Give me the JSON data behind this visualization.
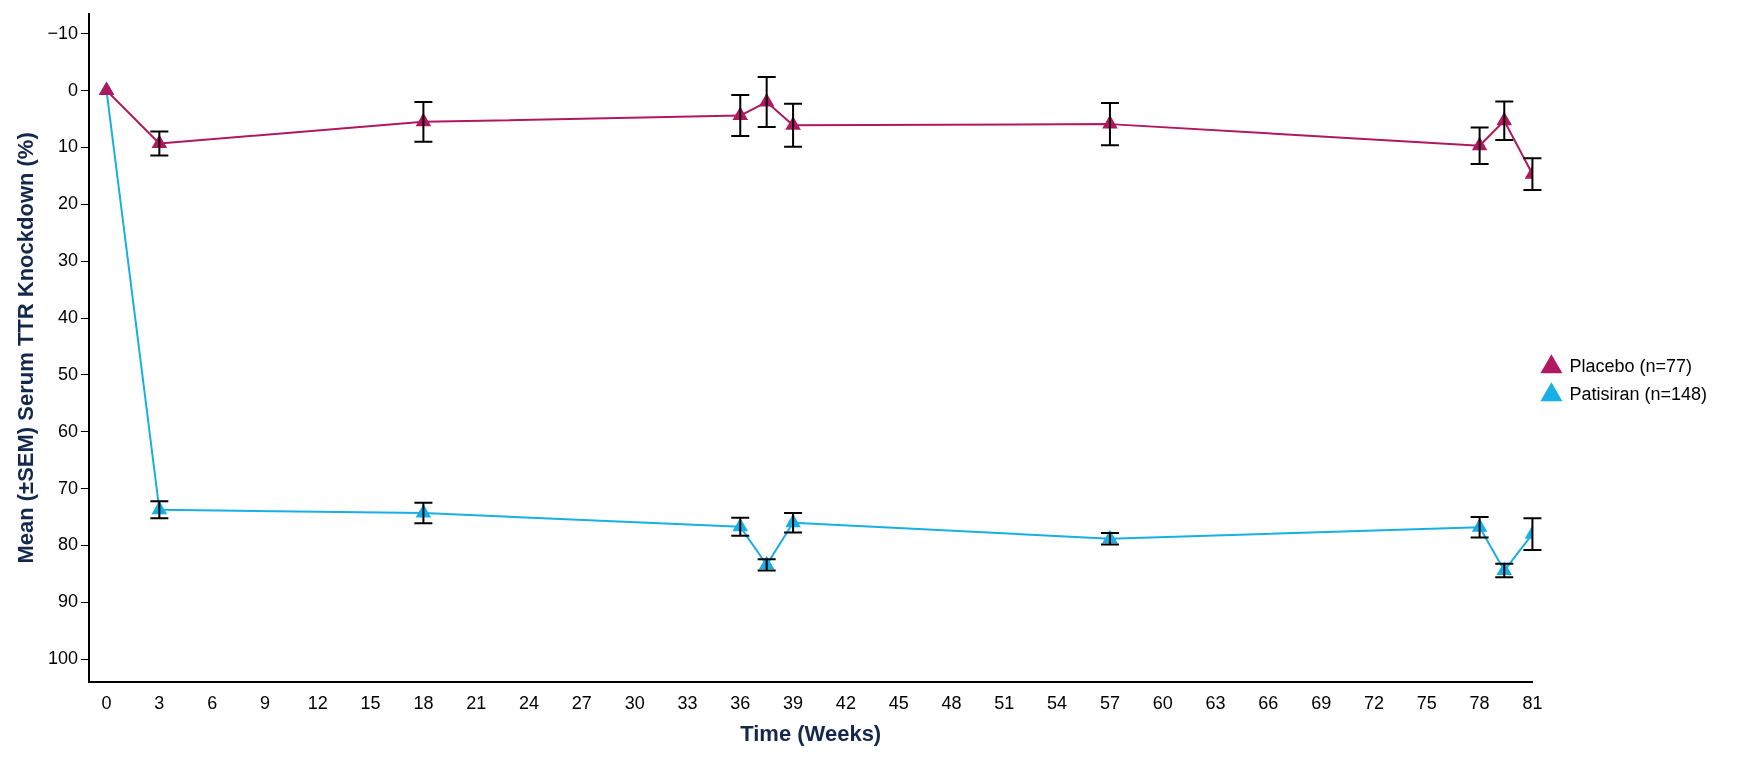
{
  "chart_data": {
    "type": "line",
    "xlabel": "Time (Weeks)",
    "ylabel": "Mean (±SEM) Serum TTR Knockdown (%)",
    "xlim": [
      -1,
      81
    ],
    "xticks": [
      0,
      3,
      6,
      9,
      12,
      15,
      18,
      21,
      24,
      27,
      30,
      33,
      36,
      39,
      42,
      45,
      48,
      51,
      54,
      57,
      60,
      63,
      66,
      69,
      72,
      75,
      78,
      81
    ],
    "ylim": [
      104,
      -13.5
    ],
    "yticks": [
      {
        "value": -10,
        "label": "−10"
      },
      0,
      10,
      20,
      30,
      40,
      50,
      60,
      70,
      80,
      90,
      100
    ],
    "grid": false,
    "legend": "right",
    "marker": "triangle",
    "line_style": "solid",
    "series": [
      {
        "name": "Placebo (n=77)",
        "color": "#b0195f",
        "x": [
          0,
          3,
          18,
          36,
          37.5,
          39,
          57,
          78,
          79.4,
          81
        ],
        "values": [
          0,
          9.3,
          5.5,
          4.4,
          2,
          6.1,
          5.9,
          9.7,
          5.3,
          14.7
        ],
        "errors": [
          null,
          2.1,
          3.5,
          3.6,
          4.4,
          3.8,
          3.7,
          3.2,
          3.4,
          2.8
        ]
      },
      {
        "name": "Patisiran (n=148)",
        "color": "#18aee6",
        "x": [
          0,
          3,
          18,
          36,
          37.5,
          39,
          57,
          78,
          79.4,
          81
        ],
        "values": [
          0,
          73.7,
          74.3,
          76.7,
          83.4,
          76,
          78.8,
          76.8,
          84.4,
          78
        ],
        "errors": [
          null,
          1.5,
          1.8,
          1.6,
          1,
          1.7,
          1,
          1.8,
          1.2,
          2.8
        ]
      }
    ]
  }
}
